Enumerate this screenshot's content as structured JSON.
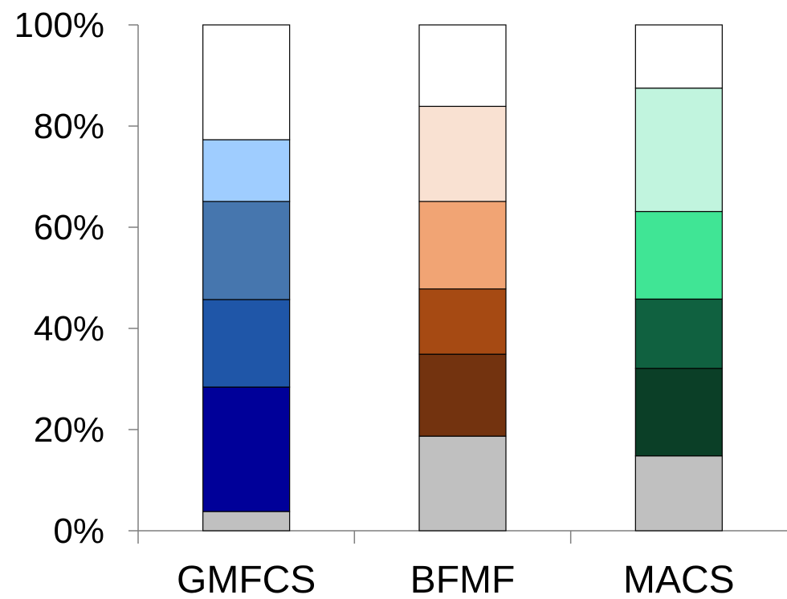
{
  "chart_data": {
    "type": "bar",
    "stacked": true,
    "percent": true,
    "categories": [
      "GMFCS",
      "BFMF",
      "MACS"
    ],
    "y_ticks": [
      "0%",
      "20%",
      "40%",
      "60%",
      "80%",
      "100%"
    ],
    "ylim": [
      0,
      100
    ],
    "grid": false,
    "title": "",
    "xlabel": "",
    "ylabel": "",
    "stacks": [
      {
        "category": "GMFCS",
        "segments": [
          {
            "value": 3.8,
            "color": "#c0c0c0"
          },
          {
            "value": 24.6,
            "color": "#000099"
          },
          {
            "value": 17.3,
            "color": "#1f56a8"
          },
          {
            "value": 19.4,
            "color": "#4676ae"
          },
          {
            "value": 12.2,
            "color": "#9fcdff"
          },
          {
            "value": 22.7,
            "color": "#ffffff"
          }
        ]
      },
      {
        "category": "BFMF",
        "segments": [
          {
            "value": 18.7,
            "color": "#c0c0c0"
          },
          {
            "value": 16.2,
            "color": "#73330f"
          },
          {
            "value": 12.9,
            "color": "#a64a13"
          },
          {
            "value": 17.3,
            "color": "#f1a474"
          },
          {
            "value": 18.8,
            "color": "#f9e1d2"
          },
          {
            "value": 16.1,
            "color": "#ffffff"
          }
        ]
      },
      {
        "category": "MACS",
        "segments": [
          {
            "value": 14.8,
            "color": "#c0c0c0"
          },
          {
            "value": 17.3,
            "color": "#0b3f27"
          },
          {
            "value": 13.7,
            "color": "#106140"
          },
          {
            "value": 17.3,
            "color": "#40e595"
          },
          {
            "value": 24.4,
            "color": "#c1f4de"
          },
          {
            "value": 12.5,
            "color": "#ffffff"
          }
        ]
      }
    ]
  }
}
